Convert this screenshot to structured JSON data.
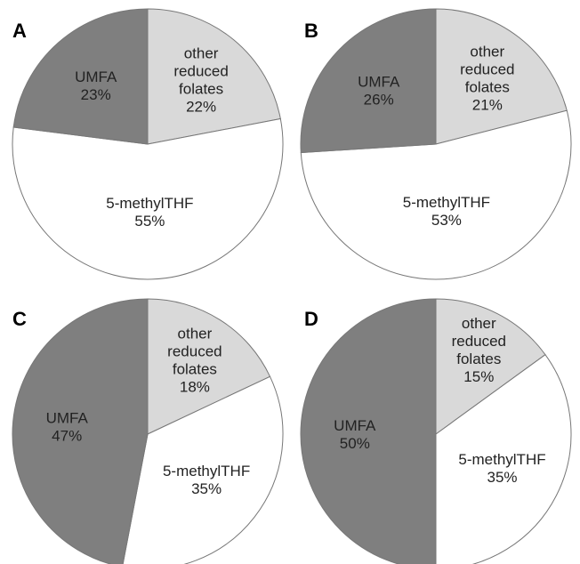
{
  "chart_data": [
    {
      "type": "pie",
      "panel": "A",
      "colors": [
        "#d9d9d9",
        "#ffffff",
        "#7f7f7f"
      ],
      "slices": [
        {
          "label": [
            "other",
            "reduced",
            "folates",
            "22%"
          ],
          "value": 22
        },
        {
          "label": [
            "5-methylTHF",
            "55%"
          ],
          "value": 55
        },
        {
          "label": [
            "UMFA",
            "23%"
          ],
          "value": 23
        }
      ]
    },
    {
      "type": "pie",
      "panel": "B",
      "colors": [
        "#d9d9d9",
        "#ffffff",
        "#7f7f7f"
      ],
      "slices": [
        {
          "label": [
            "other",
            "reduced",
            "folates",
            "21%"
          ],
          "value": 21
        },
        {
          "label": [
            "5-methylTHF",
            "53%"
          ],
          "value": 53
        },
        {
          "label": [
            "UMFA",
            "26%"
          ],
          "value": 26
        }
      ]
    },
    {
      "type": "pie",
      "panel": "C",
      "colors": [
        "#d9d9d9",
        "#ffffff",
        "#7f7f7f"
      ],
      "slices": [
        {
          "label": [
            "other",
            "reduced",
            "folates",
            "18%"
          ],
          "value": 18
        },
        {
          "label": [
            "5-methylTHF",
            "35%"
          ],
          "value": 35
        },
        {
          "label": [
            "UMFA",
            "47%"
          ],
          "value": 47
        }
      ]
    },
    {
      "type": "pie",
      "panel": "D",
      "colors": [
        "#d9d9d9",
        "#ffffff",
        "#7f7f7f"
      ],
      "slices": [
        {
          "label": [
            "other",
            "reduced",
            "folates",
            "15%"
          ],
          "value": 15
        },
        {
          "label": [
            "5-methylTHF",
            "35%"
          ],
          "value": 35
        },
        {
          "label": [
            "UMFA",
            "50%"
          ],
          "value": 50
        }
      ]
    }
  ]
}
